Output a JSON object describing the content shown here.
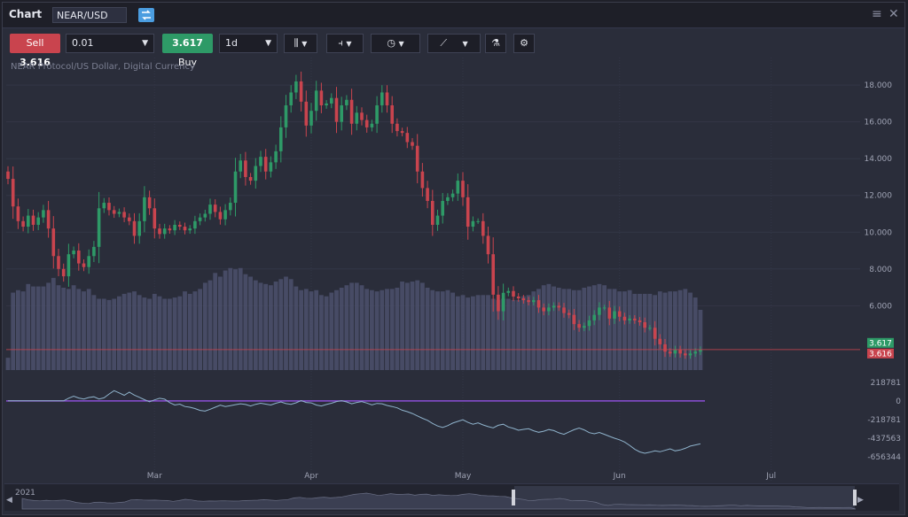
{
  "header": {
    "title": "Chart",
    "symbol": "NEAR/USD"
  },
  "toolbar": {
    "sell_label": "Sell",
    "sell_price": "3.616",
    "quantity": "0.01",
    "buy_price": "3.617",
    "buy_label": "Buy",
    "timeframe": "1d"
  },
  "chart": {
    "subtitle": "NEAR Protocol/US Dollar, Digital Currency",
    "colors": {
      "up": "#2e9a67",
      "down": "#c9444e",
      "volume": "#4a4f6a",
      "indicator": "#8fb3cc",
      "zero_line": "#8a4ed6"
    }
  },
  "chart_data": {
    "type": "candlestick",
    "y_ticks": [
      "18.000",
      "16.000",
      "14.000",
      "12.000",
      "10.000",
      "8.000",
      "6.000"
    ],
    "ylim": [
      2.5,
      19.5
    ],
    "bid": 3.616,
    "ask": 3.617,
    "bid_label": "3.616",
    "ask_label": "3.617",
    "x_ticks": [
      {
        "label": "Mar",
        "day": 29
      },
      {
        "label": "Apr",
        "day": 60
      },
      {
        "label": "May",
        "day": 90
      },
      {
        "label": "Jun",
        "day": 121
      },
      {
        "label": "Jul",
        "day": 151
      }
    ],
    "close": [
      12.9,
      11.4,
      10.6,
      10.3,
      10.9,
      10.4,
      10.8,
      11.2,
      10.2,
      8.7,
      8.0,
      7.6,
      8.8,
      9.0,
      8.3,
      8.1,
      8.7,
      9.2,
      11.3,
      11.6,
      11.2,
      11.0,
      11.1,
      10.8,
      10.6,
      9.8,
      10.6,
      11.9,
      11.3,
      10.2,
      9.9,
      10.2,
      10.1,
      10.4,
      10.3,
      10.1,
      10.2,
      10.6,
      10.8,
      11.0,
      11.5,
      11.1,
      10.7,
      11.2,
      11.6,
      13.3,
      13.9,
      13.0,
      12.8,
      13.6,
      14.1,
      13.3,
      13.8,
      14.4,
      15.7,
      16.9,
      17.6,
      18.2,
      17.1,
      15.8,
      16.6,
      17.7,
      16.9,
      17.0,
      17.3,
      16.0,
      16.9,
      17.2,
      15.9,
      16.5,
      16.1,
      15.7,
      15.9,
      16.9,
      17.6,
      16.9,
      15.9,
      15.5,
      15.4,
      14.9,
      14.7,
      13.3,
      12.4,
      11.7,
      10.4,
      10.9,
      11.7,
      11.9,
      12.1,
      12.8,
      11.9,
      10.3,
      10.6,
      10.6,
      9.8,
      8.8,
      6.6,
      5.7,
      6.7,
      6.8,
      6.5,
      6.4,
      6.3,
      6.2,
      6.3,
      5.9,
      5.7,
      5.9,
      6.0,
      5.9,
      5.6,
      5.5,
      5.0,
      4.8,
      4.9,
      5.2,
      5.5,
      5.9,
      5.9,
      5.3,
      5.7,
      5.4,
      5.2,
      5.3,
      5.2,
      5.1,
      4.8,
      4.8,
      4.2,
      3.9,
      3.5,
      3.4,
      3.6,
      3.4,
      3.3,
      3.4,
      3.5,
      3.6
    ],
    "volume": [
      0.1,
      0.63,
      0.65,
      0.64,
      0.7,
      0.68,
      0.68,
      0.68,
      0.71,
      0.75,
      0.69,
      0.67,
      0.66,
      0.69,
      0.66,
      0.64,
      0.66,
      0.61,
      0.58,
      0.58,
      0.57,
      0.58,
      0.6,
      0.62,
      0.63,
      0.64,
      0.61,
      0.59,
      0.58,
      0.62,
      0.6,
      0.58,
      0.58,
      0.59,
      0.6,
      0.64,
      0.62,
      0.64,
      0.66,
      0.71,
      0.73,
      0.79,
      0.76,
      0.81,
      0.83,
      0.82,
      0.83,
      0.78,
      0.76,
      0.73,
      0.71,
      0.7,
      0.69,
      0.72,
      0.74,
      0.76,
      0.74,
      0.68,
      0.65,
      0.66,
      0.64,
      0.65,
      0.61,
      0.6,
      0.63,
      0.65,
      0.67,
      0.69,
      0.71,
      0.71,
      0.69,
      0.66,
      0.65,
      0.64,
      0.65,
      0.66,
      0.66,
      0.67,
      0.72,
      0.71,
      0.72,
      0.73,
      0.71,
      0.67,
      0.65,
      0.64,
      0.64,
      0.65,
      0.63,
      0.6,
      0.61,
      0.59,
      0.6,
      0.61,
      0.61,
      0.61,
      0.58,
      0.57,
      0.58,
      0.58,
      0.57,
      0.57,
      0.6,
      0.61,
      0.64,
      0.66,
      0.69,
      0.7,
      0.68,
      0.67,
      0.66,
      0.66,
      0.65,
      0.65,
      0.67,
      0.68,
      0.69,
      0.7,
      0.69,
      0.66,
      0.66,
      0.64,
      0.64,
      0.65,
      0.62,
      0.62,
      0.62,
      0.62,
      0.61,
      0.64,
      0.63,
      0.64,
      0.64,
      0.65,
      0.66,
      0.63,
      0.59,
      0.49
    ],
    "indicator": {
      "ticks": [
        "218781",
        "0",
        "-218781",
        "-437563",
        "-656344"
      ],
      "ylim": [
        -780000,
        320000
      ],
      "values": [
        0,
        0,
        0,
        0,
        0,
        0,
        0,
        0,
        0,
        0,
        0,
        0,
        32000,
        55000,
        34000,
        22000,
        40000,
        48000,
        22000,
        36000,
        80000,
        120000,
        94000,
        66000,
        102000,
        68000,
        42000,
        14000,
        -10000,
        12000,
        30000,
        20000,
        -20000,
        -48000,
        -38000,
        -66000,
        -74000,
        -90000,
        -112000,
        -120000,
        -98000,
        -74000,
        -50000,
        -66000,
        -56000,
        -44000,
        -34000,
        -42000,
        -60000,
        -40000,
        -28000,
        -38000,
        -48000,
        -28000,
        -12000,
        -32000,
        -40000,
        -22000,
        4000,
        -18000,
        -24000,
        -48000,
        -60000,
        -42000,
        -28000,
        -8000,
        2000,
        -12000,
        -34000,
        -18000,
        -8000,
        -26000,
        -46000,
        -30000,
        -34000,
        -54000,
        -66000,
        -82000,
        -110000,
        -126000,
        -148000,
        -176000,
        -204000,
        -228000,
        -264000,
        -294000,
        -312000,
        -290000,
        -260000,
        -240000,
        -222000,
        -252000,
        -274000,
        -258000,
        -282000,
        -302000,
        -316000,
        -286000,
        -274000,
        -306000,
        -322000,
        -344000,
        -334000,
        -326000,
        -350000,
        -368000,
        -356000,
        -336000,
        -348000,
        -374000,
        -392000,
        -364000,
        -338000,
        -318000,
        -340000,
        -372000,
        -386000,
        -370000,
        -392000,
        -416000,
        -438000,
        -456000,
        -482000,
        -522000,
        -566000,
        -598000,
        -614000,
        -602000,
        -586000,
        -596000,
        -580000,
        -562000,
        -586000,
        -576000,
        -556000,
        -530000,
        -516000,
        -504000
      ]
    },
    "navigator_label": "2021"
  }
}
